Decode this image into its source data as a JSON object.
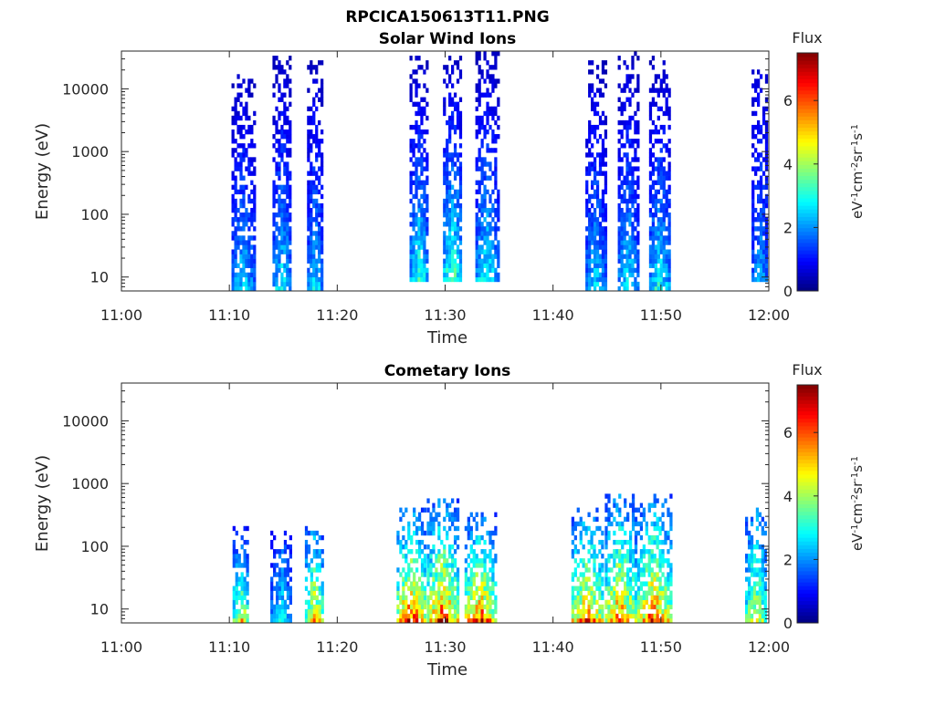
{
  "figure_title": "RPCICA150613T11.PNG",
  "colors": {
    "jet": [
      "#00007f",
      "#0000ff",
      "#007fff",
      "#00ffff",
      "#7fff7f",
      "#ffff00",
      "#ff7f00",
      "#ff0000",
      "#7f0000"
    ],
    "axis": "#262626"
  },
  "chart_data": [
    {
      "type": "heatmap",
      "title": "Solar Wind Ions",
      "xlabel": "Time",
      "ylabel": "Energy (eV)",
      "x_range": [
        "11:00",
        "12:00"
      ],
      "x_ticks": [
        "11:00",
        "11:10",
        "11:20",
        "11:30",
        "11:40",
        "11:50",
        "12:00"
      ],
      "y_scale": "log",
      "ylim": [
        6,
        40000
      ],
      "y_ticks": [
        10,
        100,
        1000,
        10000
      ],
      "y_tick_labels": [
        "10",
        "100",
        "1000",
        "10000"
      ],
      "colorbar": {
        "title": "Flux",
        "unit": "eV-1 cm-2 sr-1 s-1",
        "min": 0,
        "max": 7.5,
        "ticks": [
          0,
          2,
          4,
          6
        ]
      },
      "bursts": [
        {
          "start_min": 10.2,
          "end_min": 12.3,
          "emin": 6,
          "emax": 15000,
          "low_flux": 3.0,
          "high_flux": 0.6
        },
        {
          "start_min": 14.0,
          "end_min": 15.7,
          "emin": 6,
          "emax": 30000,
          "low_flux": 3.2,
          "high_flux": 0.6
        },
        {
          "start_min": 17.2,
          "end_min": 18.6,
          "emin": 6,
          "emax": 25000,
          "low_flux": 3.0,
          "high_flux": 0.6
        },
        {
          "start_min": 26.7,
          "end_min": 28.4,
          "emin": 8,
          "emax": 30000,
          "low_flux": 3.6,
          "high_flux": 0.6
        },
        {
          "start_min": 29.8,
          "end_min": 31.5,
          "emin": 8,
          "emax": 30000,
          "low_flux": 4.2,
          "high_flux": 0.6
        },
        {
          "start_min": 32.8,
          "end_min": 34.9,
          "emin": 8,
          "emax": 35000,
          "low_flux": 3.4,
          "high_flux": 0.6
        },
        {
          "start_min": 43.0,
          "end_min": 44.8,
          "emin": 6,
          "emax": 25000,
          "low_flux": 3.0,
          "high_flux": 0.6
        },
        {
          "start_min": 46.0,
          "end_min": 47.8,
          "emin": 6,
          "emax": 35000,
          "low_flux": 3.2,
          "high_flux": 0.6
        },
        {
          "start_min": 48.9,
          "end_min": 50.8,
          "emin": 6,
          "emax": 30000,
          "low_flux": 3.4,
          "high_flux": 0.6
        },
        {
          "start_min": 58.4,
          "end_min": 59.9,
          "emin": 8,
          "emax": 20000,
          "low_flux": 2.6,
          "high_flux": 0.8
        }
      ]
    },
    {
      "type": "heatmap",
      "title": "Cometary Ions",
      "xlabel": "Time",
      "ylabel": "Energy (eV)",
      "x_range": [
        "11:00",
        "12:00"
      ],
      "x_ticks": [
        "11:00",
        "11:10",
        "11:20",
        "11:30",
        "11:40",
        "11:50",
        "12:00"
      ],
      "y_scale": "log",
      "ylim": [
        6,
        40000
      ],
      "y_ticks": [
        10,
        100,
        1000,
        10000
      ],
      "y_tick_labels": [
        "10",
        "100",
        "1000",
        "10000"
      ],
      "colorbar": {
        "title": "Flux",
        "unit": "eV-1 cm-2 sr-1 s-1",
        "min": 0,
        "max": 7.5,
        "ticks": [
          0,
          2,
          4,
          6
        ]
      },
      "bursts": [
        {
          "start_min": 10.3,
          "end_min": 11.8,
          "emin": 6,
          "emax": 180,
          "low_flux": 5.5,
          "high_flux": 1.5
        },
        {
          "start_min": 13.8,
          "end_min": 15.8,
          "emin": 6,
          "emax": 150,
          "low_flux": 3.2,
          "high_flux": 1.5
        },
        {
          "start_min": 17.0,
          "end_min": 18.6,
          "emin": 6,
          "emax": 200,
          "low_flux": 6.0,
          "high_flux": 2.0
        },
        {
          "start_min": 25.5,
          "end_min": 28.2,
          "emin": 6,
          "emax": 400,
          "low_flux": 7.2,
          "high_flux": 2.0
        },
        {
          "start_min": 28.3,
          "end_min": 31.2,
          "emin": 6,
          "emax": 500,
          "low_flux": 7.2,
          "high_flux": 2.0
        },
        {
          "start_min": 31.8,
          "end_min": 34.8,
          "emin": 6,
          "emax": 300,
          "low_flux": 7.0,
          "high_flux": 2.0
        },
        {
          "start_min": 41.7,
          "end_min": 44.6,
          "emin": 6,
          "emax": 400,
          "low_flux": 6.8,
          "high_flux": 2.0
        },
        {
          "start_min": 44.8,
          "end_min": 47.6,
          "emin": 6,
          "emax": 600,
          "low_flux": 6.8,
          "high_flux": 2.0
        },
        {
          "start_min": 47.8,
          "end_min": 51.0,
          "emin": 6,
          "emax": 600,
          "low_flux": 6.8,
          "high_flux": 2.0
        },
        {
          "start_min": 57.8,
          "end_min": 59.8,
          "emin": 6,
          "emax": 400,
          "low_flux": 5.2,
          "high_flux": 2.0
        }
      ]
    }
  ]
}
